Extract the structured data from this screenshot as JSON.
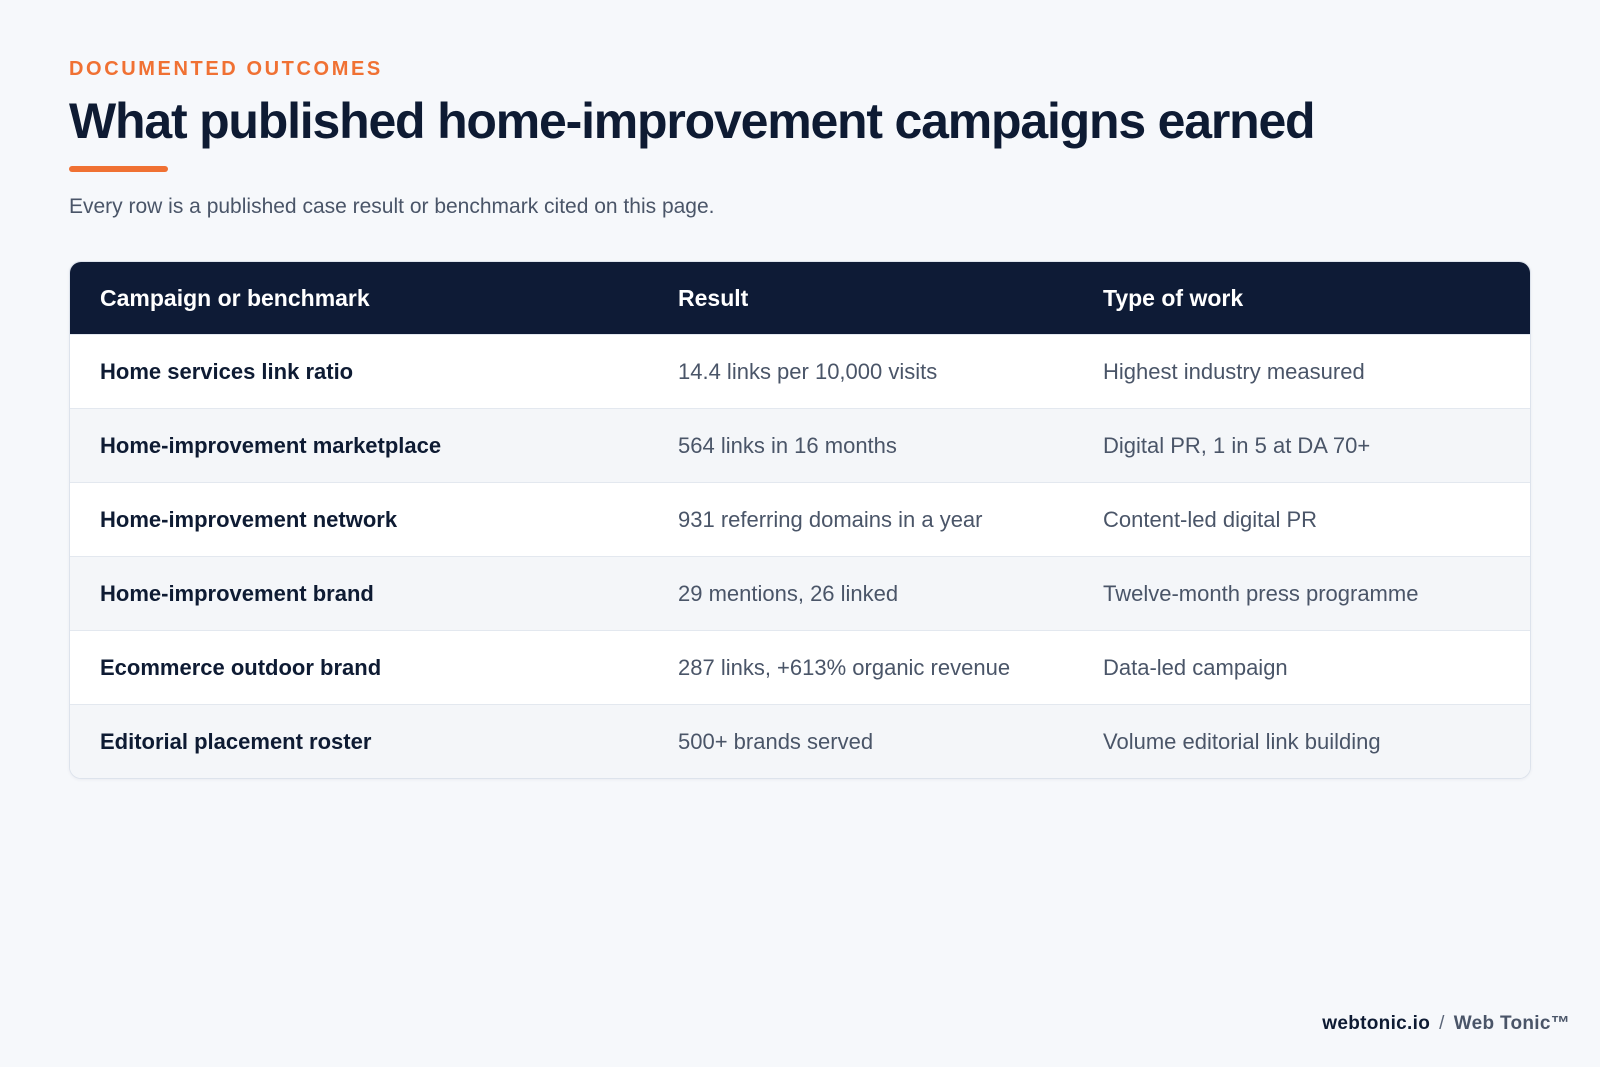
{
  "eyebrow": "DOCUMENTED OUTCOMES",
  "title": "What published home-improvement campaigns earned",
  "subtitle": "Every row is a published case result or benchmark cited on this page.",
  "table": {
    "headers": [
      "Campaign or benchmark",
      "Result",
      "Type of work"
    ],
    "rows": [
      [
        "Home services link ratio",
        "14.4 links per 10,000 visits",
        "Highest industry measured"
      ],
      [
        "Home-improvement marketplace",
        "564 links in 16 months",
        "Digital PR, 1 in 5 at DA 70+"
      ],
      [
        "Home-improvement network",
        "931 referring domains in a year",
        "Content-led digital PR"
      ],
      [
        "Home-improvement brand",
        "29 mentions, 26 linked",
        "Twelve-month press programme"
      ],
      [
        "Ecommerce outdoor brand",
        "287 links, +613% organic revenue",
        "Data-led campaign"
      ],
      [
        "Editorial placement roster",
        "500+ brands served",
        "Volume editorial link building"
      ]
    ]
  },
  "footer": {
    "domain": "webtonic.io",
    "separator": "/",
    "brand": "Web Tonic™"
  },
  "colors": {
    "accent": "#f07133",
    "navy": "#0e1b36",
    "background": "#f6f8fb",
    "muted_text": "#4a5568"
  }
}
